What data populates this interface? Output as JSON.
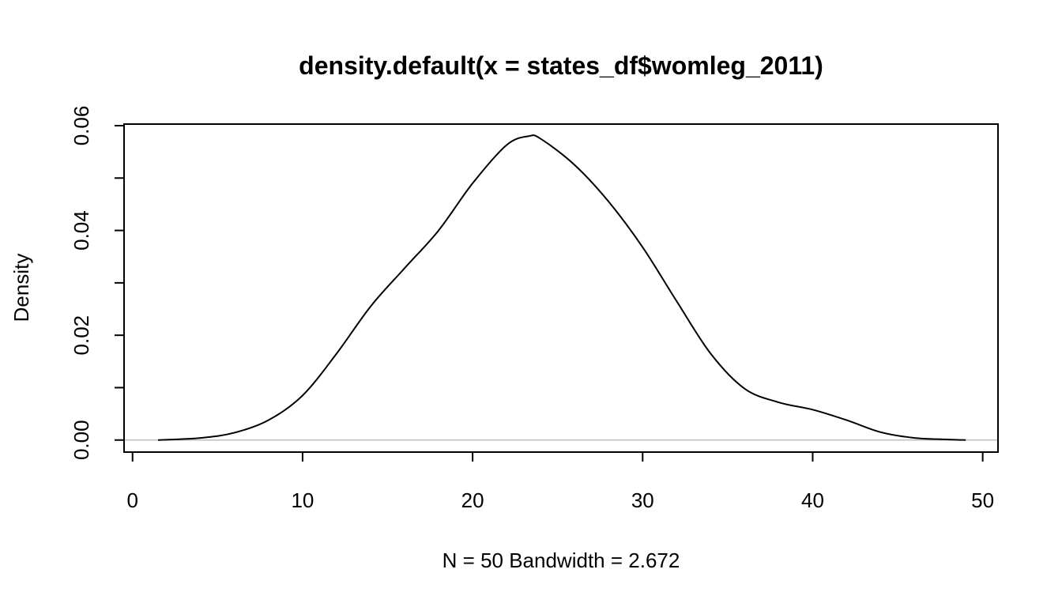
{
  "chart_data": {
    "type": "line",
    "title": "density.default(x = states_df$womleg_2011)",
    "xlabel": "N = 50   Bandwidth = 2.672",
    "ylabel": "Density",
    "xlim": [
      -0.5,
      50.9
    ],
    "ylim": [
      -0.0023,
      0.0603
    ],
    "x_ticks": [
      0,
      10,
      20,
      30,
      40,
      50
    ],
    "x_tick_labels": [
      "0",
      "10",
      "20",
      "30",
      "40",
      "50"
    ],
    "y_ticks": [
      0.0,
      0.01,
      0.02,
      0.03,
      0.04,
      0.05,
      0.06
    ],
    "y_tick_labels": [
      "0.00",
      "",
      "0.02",
      "",
      "0.04",
      "",
      "0.06"
    ],
    "grid": false,
    "baseline": 0,
    "colors": {
      "line": "#000000",
      "baseline": "#bebebe",
      "box": "#000000"
    },
    "series": [
      {
        "x": [
          1.5,
          4,
          6,
          8,
          10,
          12,
          14,
          16,
          18,
          20,
          22,
          23.3,
          24,
          26,
          28,
          30,
          32,
          34,
          36,
          38,
          40,
          42,
          44,
          46,
          48,
          49
        ],
        "y": [
          0.0,
          0.0004,
          0.0014,
          0.0038,
          0.0085,
          0.0165,
          0.0255,
          0.0328,
          0.04,
          0.049,
          0.0563,
          0.058,
          0.0575,
          0.0525,
          0.0455,
          0.0368,
          0.0265,
          0.0165,
          0.0098,
          0.0072,
          0.0058,
          0.0038,
          0.0015,
          0.0004,
          0.0001,
          0.0
        ]
      }
    ]
  }
}
